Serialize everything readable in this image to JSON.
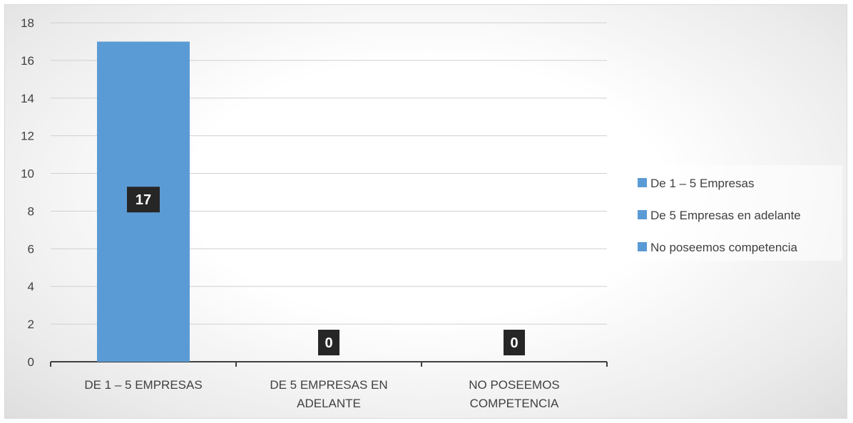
{
  "chart_data": {
    "type": "bar",
    "categories": [
      "DE 1 – 5 EMPRESAS",
      "DE 5 EMPRESAS EN ADELANTE",
      "NO POSEEMOS COMPETENCIA"
    ],
    "category_lines": [
      [
        "DE 1 – 5 EMPRESAS"
      ],
      [
        "DE 5 EMPRESAS EN",
        "ADELANTE"
      ],
      [
        "NO POSEEMOS",
        "COMPETENCIA"
      ]
    ],
    "series": [
      {
        "name": "De 1 – 5 Empresas",
        "values": [
          17,
          null,
          null
        ],
        "color": "#5b9bd5"
      },
      {
        "name": "De 5 Empresas en adelante",
        "values": [
          null,
          0,
          null
        ],
        "color": "#5b9bd5"
      },
      {
        "name": "No poseemos competencia",
        "values": [
          null,
          null,
          0
        ],
        "color": "#5b9bd5"
      }
    ],
    "data_labels": [
      "17",
      "0",
      "0"
    ],
    "ylim": [
      0,
      18
    ],
    "yticks": [
      0,
      2,
      4,
      6,
      8,
      10,
      12,
      14,
      16,
      18
    ],
    "grid": true,
    "legend_position": "right"
  }
}
